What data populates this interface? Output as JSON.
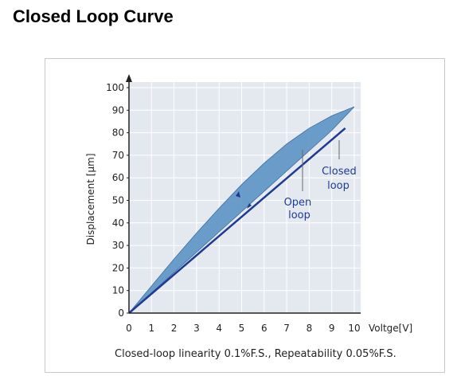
{
  "page": {
    "heading": "Closed Loop Curve"
  },
  "chart_data": {
    "type": "line",
    "title": "",
    "xlabel": "Voltge[V]",
    "ylabel": "Displacement [μm]",
    "xlim": [
      0,
      10
    ],
    "ylim": [
      0,
      100
    ],
    "x_ticks": [
      "0",
      "1",
      "2",
      "3",
      "4",
      "5",
      "6",
      "7",
      "8",
      "9",
      "10"
    ],
    "y_ticks": [
      "0",
      "10",
      "20",
      "30",
      "40",
      "50",
      "60",
      "70",
      "80",
      "90",
      "100"
    ],
    "grid": true,
    "series": [
      {
        "name": "Open loop",
        "kind": "hysteresis-area",
        "color": "#5b93c4",
        "upper": {
          "x": [
            0,
            1,
            2,
            3,
            4,
            5,
            6,
            7,
            8,
            9,
            10
          ],
          "y": [
            0,
            12,
            24,
            35.5,
            46.5,
            57,
            66.5,
            75,
            82,
            87.5,
            91.5
          ]
        },
        "lower": {
          "x": [
            0,
            1,
            2,
            3,
            4,
            5,
            6,
            7,
            8,
            9,
            10
          ],
          "y": [
            0,
            9,
            18,
            27,
            36,
            45,
            54,
            63,
            72,
            81,
            91.5
          ]
        }
      },
      {
        "name": "Closed loop",
        "kind": "line",
        "color": "#1f3a93",
        "x": [
          0,
          9.6
        ],
        "y": [
          0,
          82
        ]
      }
    ],
    "annotations": {
      "open_loop": [
        "Open",
        "loop"
      ],
      "closed_loop": [
        "Closed",
        "loop"
      ]
    },
    "caption": "Closed-loop linearity 0.1%F.S., Repeatability 0.05%F.S."
  }
}
